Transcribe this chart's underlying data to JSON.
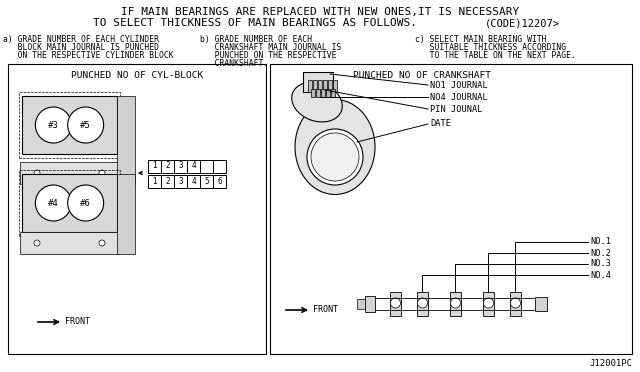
{
  "bg_color": "#ffffff",
  "line_color": "#000000",
  "text_color": "#000000",
  "gray_light": "#cccccc",
  "gray_mid": "#aaaaaa",
  "title_line1": "IF MAIN BEARINGS ARE REPLACED WITH NEW ONES,IT IS NECESSARY",
  "title_line2": "TO SELECT THICKNESS OF MAIN BEARINGS AS FOLLOWS.",
  "title_code": "(CODE)12207>",
  "sub_a_lines": [
    "a) GRADE NUMBER OF EACH CYLINDER",
    "   BLOCK MAIN JOURNAL IS PUNCHED",
    "   ON THE RESPECTIVE CYLINDER BLOCK"
  ],
  "sub_b_lines": [
    "b) GRADE NUMBER OF EACH",
    "   CRANKSHAFT MAIN JOURNAL IS",
    "   PUNCHED ON THE RESPECTIVE",
    "   CRANKSHAFT."
  ],
  "sub_c_lines": [
    "c) SELECT MAIN BEARING WITH",
    "   SUITABLE THICKNESS ACCORDING",
    "   TO THE TABLE ON THE NEXT PAGE."
  ],
  "left_title": "PUNCHED NO OF CYL-BLOCK",
  "right_title": "PUNCHED NO OF CRANKSHAFT",
  "footer": "J12001PC",
  "fs_title": 8.0,
  "fs_sub": 5.8,
  "fs_panel": 6.8,
  "fs_label": 6.2,
  "fs_footer": 6.5
}
